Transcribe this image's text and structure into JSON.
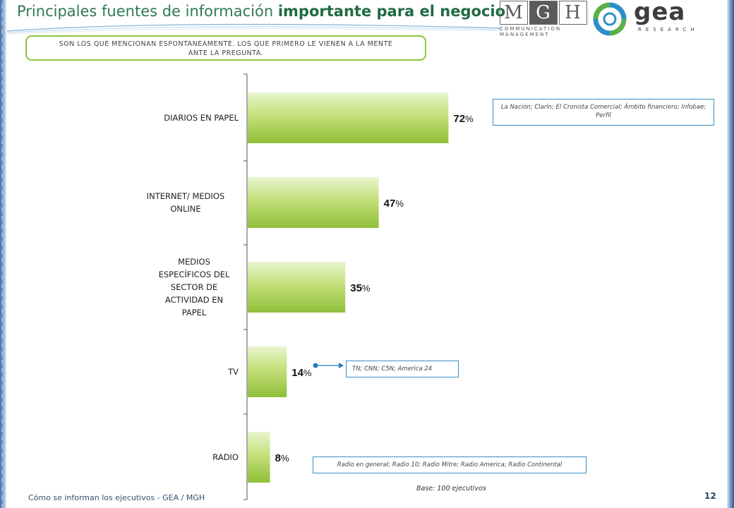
{
  "header": {
    "title_plain": "Principales fuentes de información ",
    "title_bold": "importante para el negocio"
  },
  "logos": {
    "mgh_letters": [
      "M",
      "G",
      "H"
    ],
    "mgh_sub_1": "COMMUNICATION",
    "mgh_sub_2": "MANAGEMENT",
    "gea_word": "gea",
    "gea_sub": "RESEARCH"
  },
  "subtitle": {
    "line1": "SON LOS QUE MENCIONAN ESPONTANEAMENTE. LOS QUE PRIMERO LE VIENEN A LA MENTE",
    "line2": "ANTE LA PREGUNTA."
  },
  "chart_data": {
    "type": "bar",
    "orientation": "horizontal",
    "categories": [
      [
        "DIARIOS  EN PAPEL"
      ],
      [
        "INTERNET/ MEDIOS",
        "ONLINE"
      ],
      [
        "MEDIOS",
        "ESPECÍFICOS DEL",
        "SECTOR DE",
        "ACTIVIDAD EN",
        "PAPEL"
      ],
      [
        "TV"
      ],
      [
        "RADIO"
      ]
    ],
    "values": [
      72,
      47,
      35,
      14,
      8
    ],
    "value_suffix": "%",
    "bar_color": "#8cc63f",
    "grid": false
  },
  "notes": {
    "diarios": "La Nación; Clarín; El Cronista Comercial; Ámbito financiero; Infobae; Perfil",
    "tv": "TN;  CNN; C5N; America 24",
    "radio": "Radio en general; Radio 10; Radio Mitre; Radio America; Radio Continental"
  },
  "base_note": "Base: 100  ejecutivos",
  "footer": "Cómo se informan los ejecutivos  - GEA / MGH",
  "page_number": "12"
}
